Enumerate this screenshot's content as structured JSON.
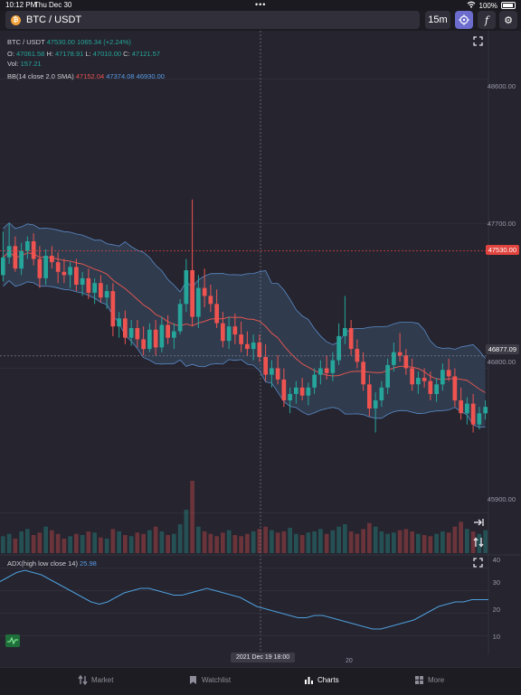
{
  "status_bar": {
    "time": "10:12 PM",
    "date": "Thu Dec 30",
    "battery": "100%"
  },
  "toolbar": {
    "symbol": "BTC / USDT",
    "symbol_badge": "₿",
    "interval": "15m",
    "indicator_glyph": "f",
    "settings_glyph": "⚙"
  },
  "legend": {
    "line1_symbol": "BTC / USDT",
    "line1_price": "47530.00",
    "line1_change": "1065.34 (+2.24%)",
    "o_label": "O:",
    "o_val": "47061.58",
    "h_label": "H:",
    "h_val": "47178.91",
    "l_label": "L:",
    "l_val": "47010.00",
    "c_label": "C:",
    "c_val": "47121.57",
    "vol_label": "Vol:",
    "vol_val": "157.21",
    "bb_label": "BB(14 close 2.0 SMA)",
    "bb_mid": "47152.04",
    "bb_up": "47374.08",
    "bb_low": "46930.00",
    "adx_label": "ADX(high low close 14)",
    "adx_val": "25.98"
  },
  "price_axis": {
    "labels": [
      "48600.00",
      "47700.00",
      "46800.00",
      "45900.00"
    ],
    "last_price_tag": "47530.00",
    "crosshair_price_tag": "46877.09"
  },
  "adx_axis": {
    "labels": [
      "40",
      "30",
      "20",
      "10"
    ]
  },
  "time_axis": {
    "crosshair_time": "2021 Dec 19 18:00",
    "tick": "20"
  },
  "nav": {
    "market": "Market",
    "watchlist": "Watchlist",
    "charts": "Charts",
    "more": "More"
  },
  "colors": {
    "up": "#26a69a",
    "down": "#ef5350",
    "band_fill": "#34435a",
    "band_line": "#5b8bc6",
    "ma_line": "#e05650",
    "adx_line": "#4f9fdc",
    "accent": "#6c6cce"
  },
  "chart_data": {
    "type": "candlestick",
    "y_range": [
      45650,
      48900
    ],
    "last_price": 47530.0,
    "crosshair_price": 46877.09,
    "candles": [
      [
        47380,
        47650,
        47340,
        47490
      ],
      [
        47490,
        47700,
        47450,
        47560
      ],
      [
        47560,
        47620,
        47400,
        47420
      ],
      [
        47420,
        47580,
        47380,
        47530
      ],
      [
        47530,
        47620,
        47480,
        47590
      ],
      [
        47590,
        47640,
        47440,
        47480
      ],
      [
        47480,
        47560,
        47300,
        47360
      ],
      [
        47360,
        47540,
        47320,
        47500
      ],
      [
        47500,
        47560,
        47420,
        47460
      ],
      [
        47460,
        47520,
        47330,
        47400
      ],
      [
        47400,
        47480,
        47330,
        47380
      ],
      [
        47380,
        47460,
        47300,
        47430
      ],
      [
        47430,
        47480,
        47280,
        47320
      ],
      [
        47320,
        47400,
        47250,
        47360
      ],
      [
        47360,
        47420,
        47230,
        47270
      ],
      [
        47270,
        47360,
        47200,
        47330
      ],
      [
        47330,
        47380,
        47210,
        47240
      ],
      [
        47240,
        47320,
        47170,
        47280
      ],
      [
        47280,
        47330,
        47000,
        47060
      ],
      [
        47060,
        47150,
        46990,
        47110
      ],
      [
        47110,
        47160,
        46950,
        46990
      ],
      [
        46990,
        47100,
        46940,
        47050
      ],
      [
        47050,
        47100,
        46930,
        46980
      ],
      [
        46980,
        47060,
        46880,
        46920
      ],
      [
        46920,
        47080,
        46900,
        47040
      ],
      [
        47040,
        47100,
        46880,
        46930
      ],
      [
        46930,
        47120,
        46900,
        47070
      ],
      [
        47070,
        47130,
        46950,
        46990
      ],
      [
        46990,
        47080,
        46920,
        47030
      ],
      [
        47030,
        47230,
        47010,
        47200
      ],
      [
        47200,
        47480,
        47150,
        47410
      ],
      [
        47410,
        47850,
        47060,
        47120
      ],
      [
        47120,
        47380,
        47050,
        47300
      ],
      [
        47300,
        47420,
        47180,
        47250
      ],
      [
        47250,
        47320,
        47150,
        47200
      ],
      [
        47200,
        47290,
        47050,
        47080
      ],
      [
        47080,
        47150,
        46930,
        46970
      ],
      [
        46970,
        47120,
        46920,
        47060
      ],
      [
        47060,
        47140,
        46950,
        47010
      ],
      [
        47010,
        47090,
        46900,
        46950
      ],
      [
        46950,
        47030,
        46880,
        46920
      ],
      [
        46920,
        47010,
        46850,
        46960
      ],
      [
        46960,
        47010,
        46840,
        46870
      ],
      [
        46870,
        46950,
        46720,
        46760
      ],
      [
        46760,
        46850,
        46680,
        46800
      ],
      [
        46800,
        46880,
        46700,
        46730
      ],
      [
        46730,
        46800,
        46560,
        46600
      ],
      [
        46600,
        46680,
        46520,
        46640
      ],
      [
        46640,
        46720,
        46580,
        46680
      ],
      [
        46680,
        46740,
        46600,
        46630
      ],
      [
        46630,
        46710,
        46570,
        46680
      ],
      [
        46680,
        46800,
        46640,
        46760
      ],
      [
        46760,
        46850,
        46700,
        46800
      ],
      [
        46800,
        46880,
        46730,
        46770
      ],
      [
        46770,
        46900,
        46720,
        46850
      ],
      [
        46850,
        47080,
        46820,
        47000
      ],
      [
        47000,
        47250,
        46950,
        47050
      ],
      [
        47050,
        47100,
        46880,
        46920
      ],
      [
        46920,
        46980,
        46800,
        46840
      ],
      [
        46840,
        46900,
        46660,
        46700
      ],
      [
        46700,
        46760,
        46500,
        46550
      ],
      [
        46550,
        46650,
        46400,
        46600
      ],
      [
        46600,
        46720,
        46560,
        46680
      ],
      [
        46680,
        46860,
        46640,
        46820
      ],
      [
        46820,
        46960,
        46780,
        46900
      ],
      [
        46900,
        47020,
        46840,
        46880
      ],
      [
        46880,
        46920,
        46760,
        46800
      ],
      [
        46800,
        46860,
        46660,
        46700
      ],
      [
        46700,
        46780,
        46640,
        46740
      ],
      [
        46740,
        46800,
        46680,
        46720
      ],
      [
        46720,
        46780,
        46600,
        46640
      ],
      [
        46640,
        46740,
        46590,
        46700
      ],
      [
        46700,
        46830,
        46660,
        46790
      ],
      [
        46790,
        46860,
        46720,
        46750
      ],
      [
        46750,
        46800,
        46560,
        46600
      ],
      [
        46600,
        46680,
        46480,
        46520
      ],
      [
        46520,
        46620,
        46450,
        46580
      ],
      [
        46580,
        46640,
        46400,
        46450
      ],
      [
        46450,
        46560,
        46420,
        46520
      ],
      [
        46520,
        46600,
        46480,
        46560
      ]
    ],
    "volume": [
      14,
      16,
      12,
      18,
      20,
      15,
      17,
      22,
      19,
      16,
      12,
      14,
      16,
      15,
      18,
      17,
      13,
      12,
      20,
      18,
      15,
      14,
      17,
      16,
      19,
      22,
      18,
      15,
      16,
      24,
      36,
      60,
      22,
      18,
      16,
      14,
      17,
      19,
      15,
      14,
      16,
      18,
      20,
      22,
      19,
      17,
      18,
      21,
      16,
      15,
      17,
      18,
      20,
      16,
      19,
      22,
      24,
      18,
      16,
      20,
      25,
      22,
      18,
      16,
      17,
      19,
      20,
      18,
      16,
      15,
      14,
      16,
      18,
      17,
      22,
      26,
      20,
      18,
      16,
      19
    ],
    "adx": [
      34,
      36,
      38,
      39,
      38,
      37,
      35,
      33,
      31,
      29,
      27,
      25,
      24,
      25,
      27,
      29,
      30,
      31,
      31,
      30,
      29,
      28,
      28,
      29,
      30,
      31,
      30,
      29,
      28,
      27,
      25,
      23,
      22,
      21,
      20,
      19,
      18,
      18,
      19,
      19,
      18,
      17,
      16,
      15,
      14,
      13,
      13,
      14,
      15,
      16,
      17,
      19,
      21,
      23,
      24,
      25,
      25,
      26,
      26,
      26
    ]
  }
}
